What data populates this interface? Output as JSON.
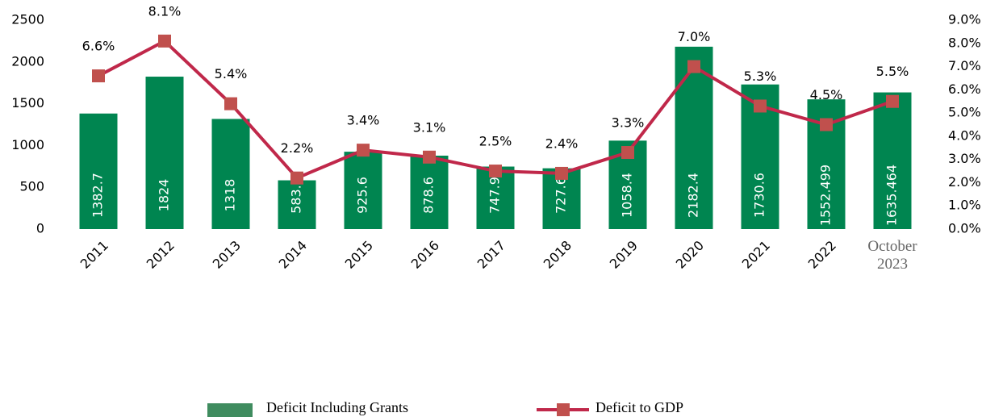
{
  "chart_data": {
    "type": "bar",
    "categories": [
      "2011",
      "2012",
      "2013",
      "2014",
      "2015",
      "2016",
      "2017",
      "2018",
      "2019",
      "2020",
      "2021",
      "2022",
      "October 2023"
    ],
    "series": [
      {
        "name": "Deficit Including Grants",
        "type": "bar",
        "color": "#008550",
        "values": [
          1382.7,
          1824,
          1318,
          583.5,
          925.6,
          878.6,
          747.9,
          727.6,
          1058.4,
          2182.4,
          1730.6,
          1552.499,
          1635.464
        ]
      },
      {
        "name": "Deficit to GDP",
        "type": "line",
        "axis": "y2",
        "color": "#c0284a",
        "marker_color": "#c0504d",
        "values": [
          6.6,
          8.1,
          5.4,
          2.2,
          3.4,
          3.1,
          2.5,
          2.4,
          3.3,
          7.0,
          5.3,
          4.5,
          5.5
        ],
        "value_labels": [
          "6.6%",
          "8.1%",
          "5.4%",
          "2.2%",
          "3.4%",
          "3.1%",
          "2.5%",
          "2.4%",
          "3.3%",
          "7.0%",
          "5.3%",
          "4.5%",
          "5.5%"
        ]
      }
    ],
    "ylim": [
      0,
      2500
    ],
    "yticks": [
      0,
      500,
      1000,
      1500,
      2000,
      2500
    ],
    "y2lim": [
      0,
      9
    ],
    "y2ticks": [
      {
        "value": 0,
        "label": "0.0%"
      },
      {
        "value": 1,
        "label": "1.0%"
      },
      {
        "value": 2,
        "label": "2.0%"
      },
      {
        "value": 3,
        "label": "3.0%"
      },
      {
        "value": 4,
        "label": "4.0%"
      },
      {
        "value": 5,
        "label": "5.0%"
      },
      {
        "value": 6,
        "label": "6.0%"
      },
      {
        "value": 7,
        "label": "7.0%"
      },
      {
        "value": 8,
        "label": "8.0%"
      },
      {
        "value": 9,
        "label": "9.0%"
      }
    ]
  }
}
